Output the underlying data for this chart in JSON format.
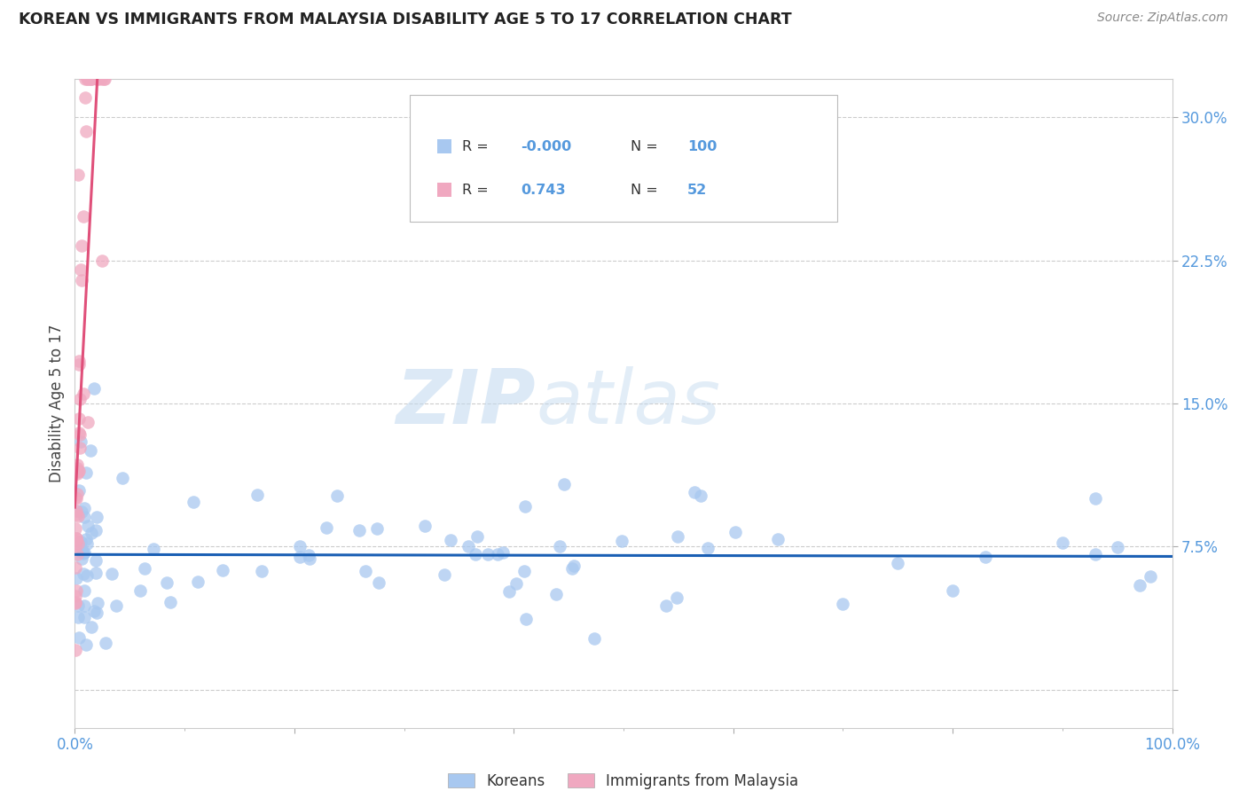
{
  "title": "KOREAN VS IMMIGRANTS FROM MALAYSIA DISABILITY AGE 5 TO 17 CORRELATION CHART",
  "source": "Source: ZipAtlas.com",
  "ylabel": "Disability Age 5 to 17",
  "xlim": [
    0.0,
    1.0
  ],
  "ylim": [
    -0.02,
    0.32
  ],
  "korean_R": -0.0,
  "korean_N": 100,
  "malaysia_R": 0.743,
  "malaysia_N": 52,
  "korean_color": "#a8c8f0",
  "malaysia_color": "#f0a8c0",
  "korean_line_color": "#1a5fb4",
  "malaysia_line_color": "#e0507a",
  "watermark_zip": "ZIP",
  "watermark_atlas": "atlas",
  "background_color": "#ffffff",
  "grid_color": "#cccccc",
  "tick_color": "#5599dd",
  "label_color": "#444444"
}
